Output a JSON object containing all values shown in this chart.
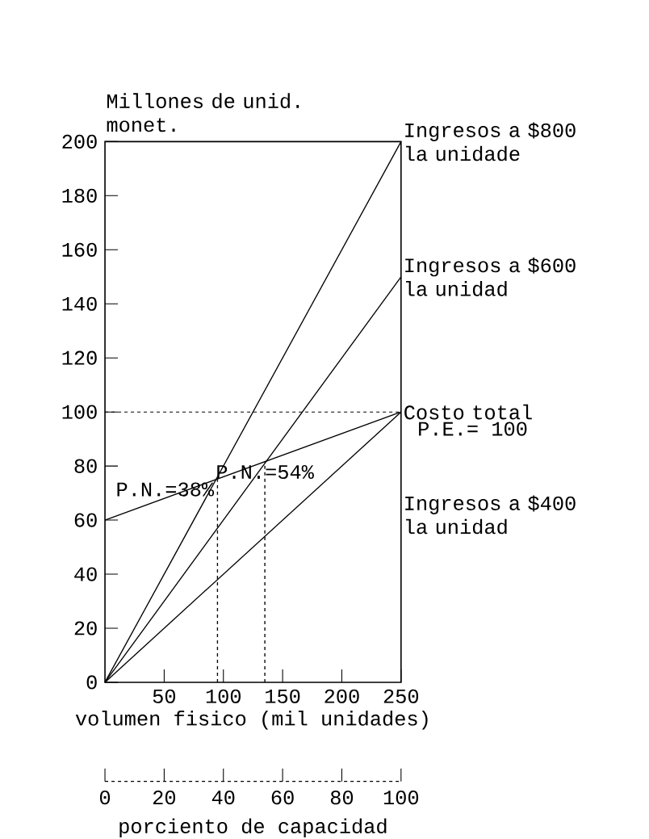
{
  "chart_data": {
    "type": "line",
    "ylabel": "Millones de unid. monet.",
    "xlabel": "volumen fisico (mil unidades)",
    "x2label": "porciento de capacidad",
    "xlim": [
      0,
      250
    ],
    "xticks": [
      50,
      100,
      150,
      200,
      250
    ],
    "ylim": [
      0,
      200
    ],
    "yticks": [
      0,
      20,
      40,
      60,
      80,
      100,
      120,
      140,
      160,
      180,
      200
    ],
    "x2lim": [
      0,
      100
    ],
    "x2ticks": [
      0,
      20,
      40,
      60,
      80,
      100
    ],
    "line_style": "solid",
    "marker": "none",
    "series": [
      {
        "name": "Ingresos a $800 la unidade",
        "color": "#000000",
        "x": [
          0,
          250
        ],
        "values": [
          0,
          200
        ]
      },
      {
        "name": "Ingresos a $600 la unidad",
        "color": "#000000",
        "x": [
          0,
          250
        ],
        "values": [
          0,
          150
        ]
      },
      {
        "name": "Costo total",
        "color": "#000000",
        "x": [
          0,
          250
        ],
        "values": [
          60,
          100
        ]
      },
      {
        "name": "Ingresos a $400 la unidad",
        "color": "#000000",
        "x": [
          0,
          250
        ],
        "values": [
          0,
          100
        ]
      },
      {
        "color": "#000000",
        "x": [
          95,
          95
        ],
        "values": [
          0,
          75.2
        ],
        "line_style": "dashed"
      },
      {
        "color": "#000000",
        "x": [
          135,
          135
        ],
        "values": [
          0,
          81.6
        ],
        "line_style": "dashed"
      }
    ],
    "ref_lines": [
      {
        "axis": "y",
        "value": 100,
        "line_style": "dashed",
        "color": "#000000"
      }
    ],
    "annotations": [
      {
        "text": "P.N.=38%",
        "x": 95,
        "y": 75.2
      },
      {
        "text": "P.N.=54%",
        "x": 135,
        "y": 81.6
      },
      {
        "text": "P.E.= 100",
        "x": 250,
        "y": 100
      }
    ]
  }
}
